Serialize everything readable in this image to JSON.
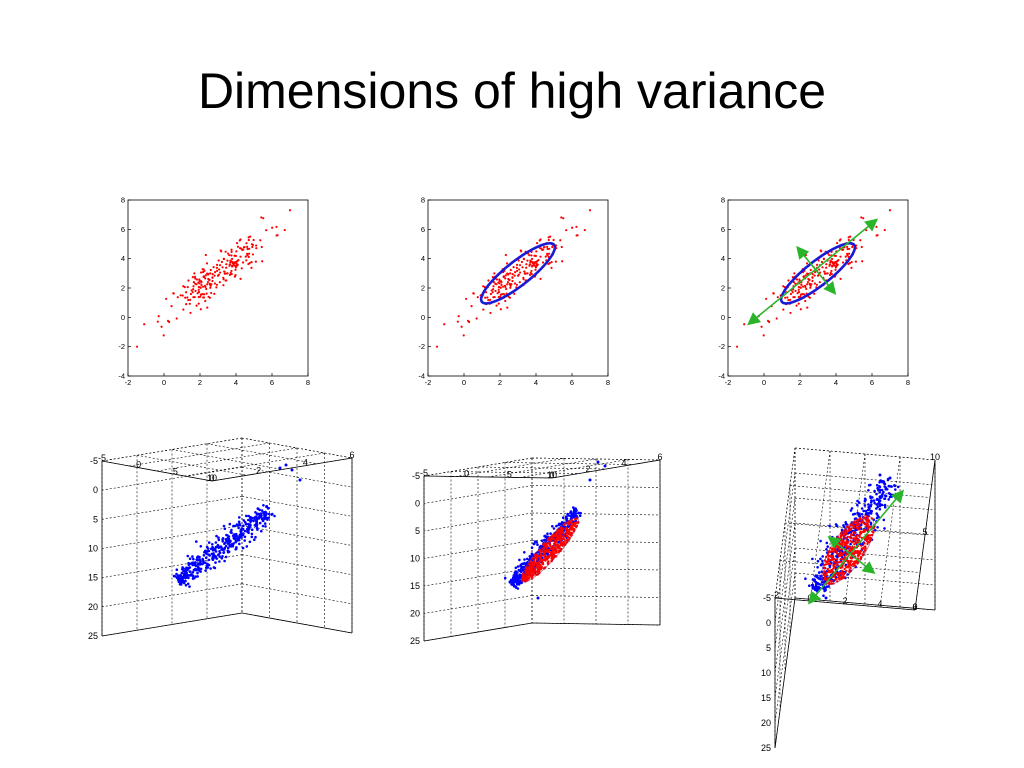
{
  "slide": {
    "title": "Dimensions of high variance"
  },
  "colors": {
    "red_points": "#ff0000",
    "blue_points": "#0000ff",
    "ellipse": "#1a1ad6",
    "axis_arrow": "#2ab42a",
    "frame": "#000000"
  },
  "chart_data": [
    {
      "type": "scatter",
      "id": "2d-raw",
      "xlim": [
        -2,
        8
      ],
      "ylim": [
        -4,
        8
      ],
      "xticks": [
        "-2",
        "0",
        "2",
        "4",
        "6",
        "8"
      ],
      "yticks": [
        "-4",
        "-2",
        "0",
        "2",
        "4",
        "6",
        "8"
      ],
      "grid": false,
      "series": [
        {
          "distribution": {
            "mean": [
              3,
              3
            ],
            "principal_axis_angle_deg": 45,
            "sd_major": 1.9,
            "sd_minor": 0.5,
            "n": 240
          },
          "color": "#ff0000"
        }
      ],
      "extreme_points": [
        [
          -1.5,
          -2
        ],
        [
          7,
          7.3
        ]
      ]
    },
    {
      "type": "scatter",
      "id": "2d-ellipse",
      "xlim": [
        -2,
        8
      ],
      "ylim": [
        -4,
        8
      ],
      "xticks": [
        "-2",
        "0",
        "2",
        "4",
        "6",
        "8"
      ],
      "yticks": [
        "-4",
        "-2",
        "0",
        "2",
        "4",
        "6",
        "8"
      ],
      "grid": false,
      "series": [
        {
          "distribution": {
            "mean": [
              3,
              3
            ],
            "principal_axis_angle_deg": 45,
            "sd_major": 1.9,
            "sd_minor": 0.5,
            "n": 240
          },
          "color": "#ff0000"
        }
      ],
      "extreme_points": [
        [
          -1.5,
          -2
        ],
        [
          7,
          7.3
        ]
      ],
      "ellipse": {
        "center": [
          3,
          3
        ],
        "angle_deg": 45,
        "semi_major": 2.8,
        "semi_minor": 0.75
      }
    },
    {
      "type": "scatter",
      "id": "2d-axes",
      "xlim": [
        -2,
        8
      ],
      "ylim": [
        -4,
        8
      ],
      "xticks": [
        "-2",
        "0",
        "2",
        "4",
        "6",
        "8"
      ],
      "yticks": [
        "-4",
        "-2",
        "0",
        "2",
        "4",
        "6",
        "8"
      ],
      "grid": false,
      "series": [
        {
          "distribution": {
            "mean": [
              3,
              3
            ],
            "principal_axis_angle_deg": 45,
            "sd_major": 1.9,
            "sd_minor": 0.5,
            "n": 240
          },
          "color": "#ff0000"
        }
      ],
      "extreme_points": [
        [
          -1.5,
          -2
        ],
        [
          7,
          7.3
        ]
      ],
      "ellipse": {
        "center": [
          3,
          3
        ],
        "angle_deg": 45,
        "semi_major": 2.8,
        "semi_minor": 0.75
      },
      "principal_axes": [
        {
          "from": [
            -0.8,
            -0.4
          ],
          "to": [
            6.2,
            6.6
          ]
        },
        {
          "from": [
            1.9,
            4.7
          ],
          "to": [
            3.9,
            1.7
          ]
        }
      ]
    },
    {
      "type": "scatter3d",
      "id": "3d-raw",
      "xlim": [
        -5,
        10
      ],
      "ylim": [
        0,
        6
      ],
      "zlim": [
        -5,
        25
      ],
      "x_ticks": [
        "-5",
        "0",
        "5",
        "10"
      ],
      "y_ticks": [
        "0",
        "2",
        "4",
        "6"
      ],
      "z_ticks": [
        "-5",
        "0",
        "5",
        "10",
        "15",
        "20",
        "25"
      ],
      "grid": true,
      "series": [
        {
          "distribution": {
            "mean": [
              3,
              3,
              5
            ],
            "n": 420,
            "spread": "elongated along one direction"
          },
          "color": "#0000ff"
        }
      ]
    },
    {
      "type": "scatter3d",
      "id": "3d-ellipsoid",
      "xlim": [
        -5,
        10
      ],
      "ylim": [
        0,
        6
      ],
      "zlim": [
        -5,
        25
      ],
      "x_ticks": [
        "-5",
        "0",
        "5",
        "10"
      ],
      "y_ticks": [
        "0",
        "2",
        "4",
        "6"
      ],
      "z_ticks": [
        "-5",
        "0",
        "5",
        "10",
        "15",
        "20",
        "25"
      ],
      "grid": true,
      "series": [
        {
          "distribution": {
            "mean": [
              3,
              3,
              5
            ],
            "n": 420,
            "spread": "elongated along one direction"
          },
          "color": "#0000ff"
        },
        {
          "distribution": {
            "n": 450,
            "spread": "inside ellipsoid"
          },
          "color": "#ff0000"
        }
      ]
    },
    {
      "type": "scatter3d",
      "id": "3d-axes",
      "xlim": [
        -2,
        6
      ],
      "ylim": [
        0,
        10
      ],
      "zlim": [
        -5,
        25
      ],
      "x_ticks": [
        "-2",
        "0",
        "2",
        "4",
        "6"
      ],
      "y_ticks": [
        "0",
        "5",
        "10"
      ],
      "z_ticks": [
        "-5",
        "0",
        "5",
        "10",
        "15",
        "20",
        "25"
      ],
      "grid": true,
      "series": [
        {
          "distribution": {
            "n": 420,
            "spread": "elongated along one direction"
          },
          "color": "#0000ff"
        },
        {
          "distribution": {
            "n": 450,
            "spread": "inside ellipsoid"
          },
          "color": "#ff0000"
        }
      ],
      "principal_axes": [
        "major",
        "secondary"
      ]
    }
  ]
}
